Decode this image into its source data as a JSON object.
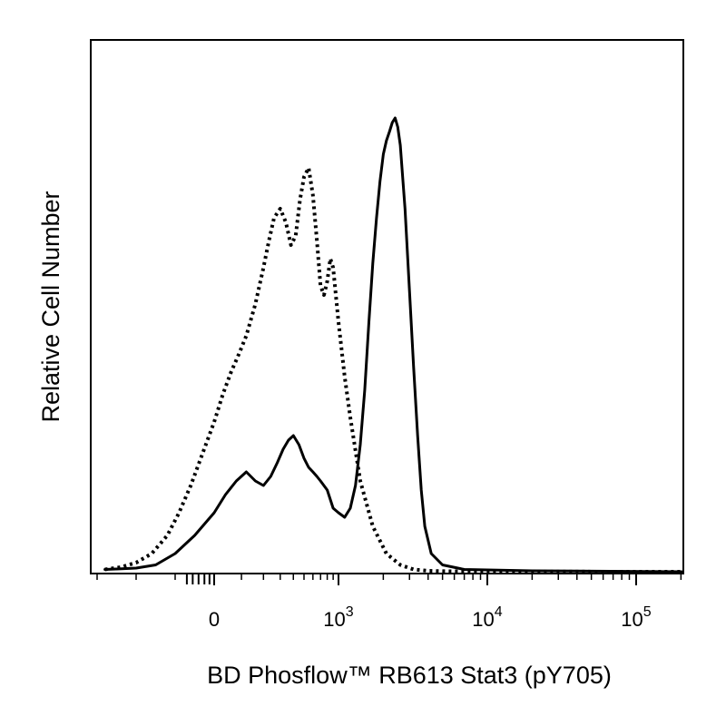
{
  "chart_data": {
    "type": "line",
    "title": "",
    "xlabel": "BD Phosflow™ RB613 Stat3 (pY705)",
    "ylabel": "Relative Cell Number",
    "x_scale": "biexponential",
    "xlim": [
      -300,
      250000
    ],
    "ylim": [
      0,
      100
    ],
    "grid": false,
    "legend": "none",
    "x_ticks": [
      {
        "value": 0,
        "base": "0",
        "exp": ""
      },
      {
        "value": 1000,
        "base": "10",
        "exp": "3"
      },
      {
        "value": 10000,
        "base": "10",
        "exp": "4"
      },
      {
        "value": 100000,
        "base": "10",
        "exp": "5"
      }
    ],
    "series": [
      {
        "style": "dotted",
        "color": "#000000",
        "x": [
          -280,
          -240,
          -200,
          -160,
          -120,
          -90,
          -60,
          -30,
          0,
          30,
          60,
          90,
          120,
          160,
          200,
          230,
          260,
          300,
          340,
          380,
          420,
          460,
          500,
          550,
          600,
          650,
          700,
          750,
          800,
          850,
          900,
          1000,
          1100,
          1200,
          1400,
          1700,
          2100,
          2600,
          3200,
          4000,
          5500,
          10000,
          100000,
          250000
        ],
        "y": [
          0.5,
          1,
          2,
          4,
          8,
          13,
          19,
          26,
          33,
          39,
          44,
          48,
          52,
          59,
          67,
          73,
          78,
          80,
          77,
          72,
          74,
          82,
          87,
          89,
          83,
          73,
          63,
          61,
          64,
          69,
          67,
          55,
          43,
          34,
          20,
          10,
          4,
          1.5,
          0.5,
          0.2,
          0.1,
          0.05,
          0,
          0
        ]
      },
      {
        "style": "solid",
        "color": "#000000",
        "x": [
          -280,
          -250,
          -200,
          -150,
          -100,
          -50,
          0,
          40,
          80,
          120,
          160,
          200,
          240,
          280,
          320,
          360,
          400,
          450,
          500,
          550,
          600,
          650,
          700,
          800,
          900,
          1000,
          1100,
          1200,
          1300,
          1400,
          1500,
          1600,
          1700,
          1800,
          1900,
          2000,
          2100,
          2200,
          2300,
          2400,
          2500,
          2600,
          2800,
          3000,
          3200,
          3400,
          3600,
          3800,
          4200,
          5000,
          7000,
          20000,
          250000
        ],
        "y": [
          0.5,
          0.6,
          0.8,
          1.5,
          4,
          8,
          13,
          17,
          20,
          22,
          20,
          19,
          21,
          24,
          27,
          29,
          30,
          28,
          25,
          23,
          22,
          21,
          20,
          18,
          14,
          13,
          12,
          14,
          19,
          28,
          40,
          55,
          68,
          78,
          86,
          92,
          95,
          97,
          99,
          100,
          98,
          94,
          80,
          62,
          45,
          30,
          18,
          10,
          4,
          1.5,
          0.5,
          0.2,
          0
        ]
      }
    ]
  }
}
